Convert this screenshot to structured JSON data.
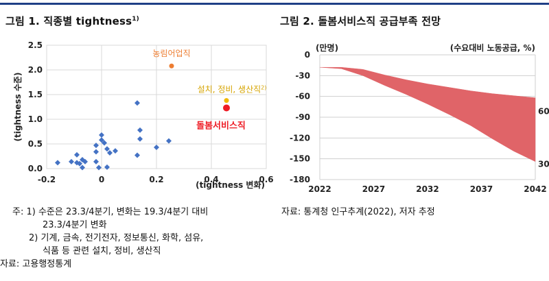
{
  "panel1": {
    "title": "그림 1. 직종별 tightness",
    "title_sup": "1)",
    "notes": [
      "주: 1) 수준은 23.3/4분기, 변화는 19.3/4분기 대비",
      "23.3/4분기 변화",
      "2) 기계, 금속, 전기전자, 정보통신, 화학, 섬유,",
      "식품 등 관련 설치, 정비, 생산직"
    ],
    "source": "자료: 고용행정통계"
  },
  "panel2": {
    "title": "그림 2. 돌봄서비스직 공급부족 전망",
    "source": "자료: 통계청 인구추계(2022), 저자 추정"
  },
  "chart_data": [
    {
      "type": "scatter",
      "xlabel": "(tightness 변화)",
      "ylabel": "(tightness 수준)",
      "xlim": [
        -0.2,
        0.6
      ],
      "ylim": [
        0.0,
        2.5
      ],
      "xticks": [
        "-0.2",
        "0",
        "0.2",
        "0.4",
        "0.6"
      ],
      "yticks": [
        "0.0",
        "0.5",
        "1.0",
        "1.5",
        "2.0",
        "2.5"
      ],
      "grid": true,
      "series": [
        {
          "color": "#4472c4",
          "marker": "diamond",
          "points": [
            [
              -0.16,
              0.12
            ],
            [
              -0.11,
              0.14
            ],
            [
              -0.09,
              0.28
            ],
            [
              -0.09,
              0.12
            ],
            [
              -0.08,
              0.1
            ],
            [
              -0.07,
              0.18
            ],
            [
              -0.06,
              0.14
            ],
            [
              -0.07,
              0.02
            ],
            [
              -0.02,
              0.47
            ],
            [
              -0.02,
              0.34
            ],
            [
              -0.02,
              0.14
            ],
            [
              -0.01,
              0.02
            ],
            [
              0.0,
              0.58
            ],
            [
              0.0,
              0.68
            ],
            [
              0.01,
              0.52
            ],
            [
              0.02,
              0.4
            ],
            [
              0.03,
              0.32
            ],
            [
              0.05,
              0.36
            ],
            [
              0.02,
              0.03
            ],
            [
              0.13,
              1.33
            ],
            [
              0.14,
              0.78
            ],
            [
              0.14,
              0.6
            ],
            [
              0.13,
              0.27
            ],
            [
              0.2,
              0.43
            ],
            [
              0.245,
              0.56
            ]
          ]
        }
      ],
      "highlights": [
        {
          "label": "농림어업직",
          "x": 0.255,
          "y": 2.08,
          "color": "#ed7d31"
        },
        {
          "label": "설치, 정비, 생산직",
          "label_sup": "2)",
          "x": 0.455,
          "y": 1.38,
          "color": "#f0b800"
        },
        {
          "label": "돌봄서비스직",
          "x": 0.455,
          "y": 1.23,
          "color": "#ee1c25"
        }
      ]
    },
    {
      "type": "area",
      "ylabel": "(만명)",
      "legend_text": "(수요대비 노동공급, %)",
      "xlim": [
        2022,
        2042
      ],
      "ylim": [
        -180,
        0
      ],
      "xticks": [
        "2022",
        "2027",
        "2032",
        "2037",
        "2042"
      ],
      "yticks": [
        "0",
        "-30",
        "-60",
        "-90",
        "-120",
        "-150",
        "-180"
      ],
      "x": [
        2022,
        2024,
        2026,
        2028,
        2030,
        2032,
        2034,
        2036,
        2038,
        2040,
        2042
      ],
      "upper": [
        -18,
        -18,
        -21,
        -29,
        -36,
        -42,
        -47,
        -52,
        -56,
        -59,
        -62
      ],
      "lower": [
        -18,
        -20,
        -30,
        -44,
        -57,
        -71,
        -86,
        -102,
        -121,
        -139,
        -154
      ],
      "end_labels": [
        "60",
        "30"
      ],
      "color": "#e06468"
    }
  ]
}
